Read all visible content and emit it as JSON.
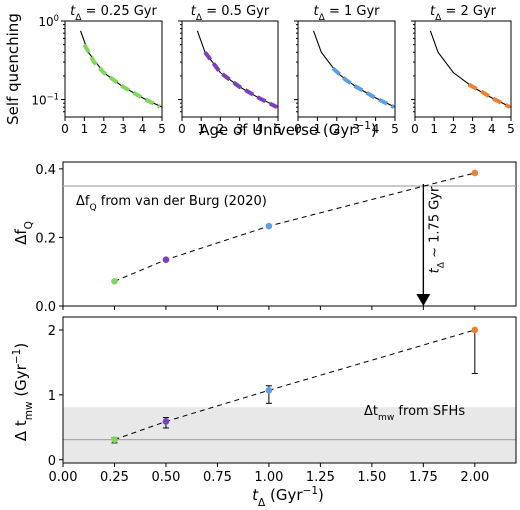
{
  "chart_data": [
    {
      "type": "line",
      "panel": "top-left",
      "title": "t_Δ = 0.25 Gyr",
      "ylabel": "Self quenching",
      "yscale": "log",
      "ylim": [
        0.06,
        1.0
      ],
      "xlim": [
        0,
        5
      ],
      "x_ticks": [
        "0",
        "1",
        "2",
        "3",
        "4",
        "5"
      ],
      "y_ticks": [
        "10^0",
        "10^-1"
      ],
      "series": [
        {
          "name": "",
          "style": "solid",
          "color": "#000000",
          "x": [
            0.8,
            1.2,
            2.0,
            3.0,
            4.0,
            5.0
          ],
          "y": [
            0.75,
            0.4,
            0.22,
            0.145,
            0.105,
            0.08
          ]
        },
        {
          "name": "",
          "style": "dashed",
          "color": "#7ed957",
          "x": [
            1.0,
            1.5,
            2.0,
            3.0,
            4.0,
            4.9
          ],
          "y": [
            0.5,
            0.3,
            0.22,
            0.145,
            0.105,
            0.081
          ]
        }
      ]
    },
    {
      "type": "line",
      "panel": "top-2",
      "title": "t_Δ = 0.5 Gyr",
      "yscale": "log",
      "ylim": [
        0.06,
        1.0
      ],
      "xlim": [
        0,
        5
      ],
      "x_ticks": [
        "0",
        "1",
        "2",
        "3",
        "4",
        "5"
      ],
      "series": [
        {
          "name": "",
          "style": "solid",
          "color": "#000000",
          "x": [
            0.8,
            1.2,
            2.0,
            3.0,
            4.0,
            5.0
          ],
          "y": [
            0.75,
            0.4,
            0.22,
            0.145,
            0.105,
            0.08
          ]
        },
        {
          "name": "",
          "style": "dashed",
          "color": "#7b3fbf",
          "x": [
            1.2,
            2.0,
            3.0,
            4.0,
            4.95
          ],
          "y": [
            0.4,
            0.22,
            0.145,
            0.105,
            0.08
          ]
        }
      ]
    },
    {
      "type": "line",
      "panel": "top-3",
      "title": "t_Δ = 1 Gyr",
      "yscale": "log",
      "ylim": [
        0.06,
        1.0
      ],
      "xlim": [
        0,
        5
      ],
      "x_ticks": [
        "0",
        "1",
        "2",
        "3",
        "4",
        "5"
      ],
      "series": [
        {
          "name": "",
          "style": "solid",
          "color": "#000000",
          "x": [
            0.8,
            1.2,
            2.0,
            3.0,
            4.0,
            5.0
          ],
          "y": [
            0.75,
            0.4,
            0.22,
            0.145,
            0.105,
            0.08
          ]
        },
        {
          "name": "",
          "style": "dashed",
          "color": "#5aa0e6",
          "x": [
            1.8,
            2.5,
            3.0,
            4.0,
            4.95
          ],
          "y": [
            0.25,
            0.175,
            0.145,
            0.105,
            0.08
          ]
        }
      ]
    },
    {
      "type": "line",
      "panel": "top-4",
      "title": "t_Δ = 2 Gyr",
      "yscale": "log",
      "ylim": [
        0.06,
        1.0
      ],
      "xlim": [
        0,
        5
      ],
      "x_ticks": [
        "0",
        "1",
        "2",
        "3",
        "4",
        "5"
      ],
      "series": [
        {
          "name": "",
          "style": "solid",
          "color": "#000000",
          "x": [
            0.8,
            1.2,
            2.0,
            3.0,
            4.0,
            5.0
          ],
          "y": [
            0.75,
            0.4,
            0.22,
            0.145,
            0.105,
            0.08
          ]
        },
        {
          "name": "",
          "style": "dashed",
          "color": "#f07f2e",
          "x": [
            2.8,
            3.5,
            4.0,
            4.95
          ],
          "y": [
            0.155,
            0.125,
            0.105,
            0.08
          ]
        }
      ]
    },
    {
      "type": "scatter",
      "panel": "middle",
      "ylabel": "Δf_Q",
      "xlim": [
        0.0,
        2.2
      ],
      "ylim": [
        0.0,
        0.42
      ],
      "y_ticks": [
        "0.0",
        "0.2",
        "0.4"
      ],
      "points": [
        {
          "x": 0.25,
          "y": 0.072,
          "color": "#7ed957"
        },
        {
          "x": 0.5,
          "y": 0.135,
          "color": "#7b3fbf"
        },
        {
          "x": 1.0,
          "y": 0.233,
          "color": "#5aa0e6"
        },
        {
          "x": 2.0,
          "y": 0.388,
          "color": "#f07f2e"
        }
      ],
      "reference_line": {
        "y": 0.35,
        "label": "Δf_Q from van der Burg (2020)"
      },
      "annotation": {
        "x": 1.75,
        "label": "t_Δ ∼ 1.75 Gyr"
      }
    },
    {
      "type": "scatter",
      "panel": "bottom",
      "ylabel": "Δ t_mw (Gyr^-1)",
      "xlabel": "t_Δ (Gyr^-1)",
      "xlim": [
        0.0,
        2.2
      ],
      "ylim": [
        -0.05,
        2.2
      ],
      "x_ticks": [
        "0.00",
        "0.25",
        "0.50",
        "0.75",
        "1.00",
        "1.25",
        "1.50",
        "1.75",
        "2.00"
      ],
      "y_ticks": [
        "0",
        "1",
        "2"
      ],
      "points": [
        {
          "x": 0.25,
          "y": 0.31,
          "yerr_low": 0.05,
          "yerr_high": 0.03,
          "color": "#7ed957"
        },
        {
          "x": 0.5,
          "y": 0.59,
          "yerr_low": 0.1,
          "yerr_high": 0.06,
          "color": "#7b3fbf"
        },
        {
          "x": 1.0,
          "y": 1.07,
          "yerr_low": 0.2,
          "yerr_high": 0.07,
          "color": "#5aa0e6"
        },
        {
          "x": 2.0,
          "y": 2.0,
          "yerr_low": 0.67,
          "yerr_high": 0.0,
          "color": "#f07f2e"
        }
      ],
      "band": {
        "y_low": -0.05,
        "y_high": 0.81,
        "center": 0.31,
        "label": "Δt_mw from SFHs"
      }
    }
  ],
  "labels": {
    "top_ylabel": "Self quenching",
    "top_xlabel": "Age of Universe (Gyr",
    "top_xlabel_sup": "−1",
    "top_xlabel_close": ")",
    "top_titles": [
      {
        "pre": "t",
        "sub": "Δ",
        "post": " = 0.25 Gyr"
      },
      {
        "pre": "t",
        "sub": "Δ",
        "post": " = 0.5 Gyr"
      },
      {
        "pre": "t",
        "sub": "Δ",
        "post": " = 1 Gyr"
      },
      {
        "pre": "t",
        "sub": "Δ",
        "post": " = 2 Gyr"
      }
    ],
    "top_ytick_1": {
      "base": "10",
      "exp": "0"
    },
    "top_ytick_2": {
      "base": "10",
      "exp": "−1"
    },
    "mid_ylabel": {
      "pre": "Δf",
      "sub": "Q"
    },
    "mid_ref": {
      "pre": "Δf",
      "sub": "Q",
      "post": " from van der Burg (2020)"
    },
    "mid_arrow": {
      "pre": "t",
      "sub": "Δ",
      "post": " ∼ 1.75 Gyr"
    },
    "bot_ylabel": {
      "pre": "Δ t",
      "sub": "mw",
      "post": " (Gyr",
      "sup": "−1",
      "close": ")"
    },
    "bot_band": {
      "pre": "Δt",
      "sub": "mw",
      "post": " from SFHs"
    },
    "bot_xlabel": {
      "pre": "t",
      "sub": "Δ",
      "post": " (Gyr",
      "sup": "−1",
      "close": ")"
    }
  },
  "colors": {
    "green": "#7ed957",
    "purple": "#7b3fbf",
    "blue": "#5aa0e6",
    "orange": "#f07f2e",
    "band": "#e8e8e8",
    "ref_line": "#aaaaaa"
  }
}
